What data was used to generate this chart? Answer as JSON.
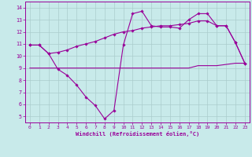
{
  "xlabel": "Windchill (Refroidissement éolien,°C)",
  "background_color": "#c8eaea",
  "grid_color": "#aacccc",
  "line_color": "#990099",
  "xlim": [
    -0.5,
    23.5
  ],
  "ylim": [
    4.5,
    14.5
  ],
  "xticks": [
    0,
    1,
    2,
    3,
    4,
    5,
    6,
    7,
    8,
    9,
    10,
    11,
    12,
    13,
    14,
    15,
    16,
    17,
    18,
    19,
    20,
    21,
    22,
    23
  ],
  "yticks": [
    5,
    6,
    7,
    8,
    9,
    10,
    11,
    12,
    13,
    14
  ],
  "line1_x": [
    0,
    1,
    2,
    3,
    4,
    5,
    6,
    7,
    8,
    9,
    10,
    11,
    12,
    13,
    14,
    15,
    16,
    17,
    18,
    19,
    20,
    21,
    22,
    23
  ],
  "line1_y": [
    10.9,
    10.9,
    10.2,
    10.3,
    10.5,
    10.8,
    11.0,
    11.2,
    11.5,
    11.8,
    12.0,
    12.1,
    12.3,
    12.4,
    12.5,
    12.5,
    12.6,
    12.7,
    12.9,
    12.9,
    12.5,
    12.5,
    11.1,
    9.4
  ],
  "line2_x": [
    0,
    1,
    2,
    3,
    4,
    5,
    6,
    7,
    8,
    9,
    10,
    11,
    12,
    13,
    14,
    15,
    16,
    17,
    18,
    19,
    20,
    21,
    22,
    23
  ],
  "line2_y": [
    10.9,
    10.9,
    10.2,
    8.9,
    8.4,
    7.6,
    6.6,
    5.9,
    4.8,
    5.5,
    10.9,
    13.5,
    13.7,
    12.5,
    12.4,
    12.4,
    12.3,
    13.0,
    13.5,
    13.5,
    12.5,
    12.5,
    11.1,
    9.4
  ],
  "line3_x": [
    0,
    1,
    2,
    3,
    4,
    5,
    6,
    7,
    8,
    9,
    10,
    11,
    12,
    13,
    14,
    15,
    16,
    17,
    18,
    19,
    20,
    21,
    22,
    23
  ],
  "line3_y": [
    9.0,
    9.0,
    9.0,
    9.0,
    9.0,
    9.0,
    9.0,
    9.0,
    9.0,
    9.0,
    9.0,
    9.0,
    9.0,
    9.0,
    9.0,
    9.0,
    9.0,
    9.0,
    9.2,
    9.2,
    9.2,
    9.3,
    9.4,
    9.4
  ],
  "figsize": [
    3.2,
    2.0
  ],
  "dpi": 100,
  "tick_fontsize": 4.5,
  "xlabel_fontsize": 5.0,
  "marker_size": 1.8,
  "linewidth": 0.8
}
